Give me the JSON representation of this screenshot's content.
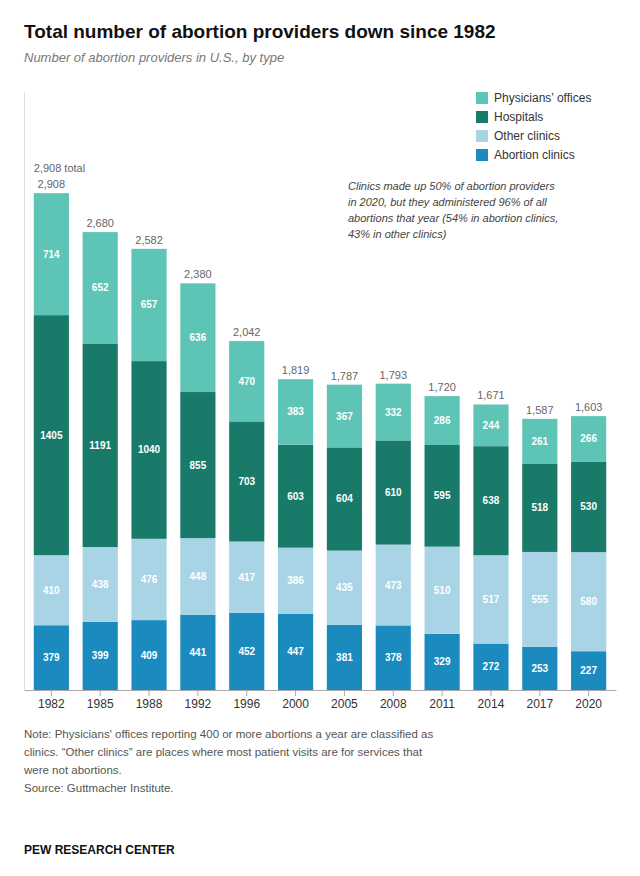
{
  "chart_data": {
    "type": "bar",
    "stacked": true,
    "title": "Total number of abortion providers down since 1982",
    "subtitle": "Number of abortion providers in U.S., by type",
    "categories": [
      "1982",
      "1985",
      "1988",
      "1992",
      "1996",
      "2000",
      "2005",
      "2008",
      "2011",
      "2014",
      "2017",
      "2020"
    ],
    "series": [
      {
        "name": "Physicians’ offices",
        "color": "#5ec4b5",
        "values": [
          714,
          652,
          657,
          636,
          470,
          383,
          367,
          332,
          286,
          244,
          261,
          266
        ]
      },
      {
        "name": "Hospitals",
        "color": "#1a7a6a",
        "values": [
          1405,
          1191,
          1040,
          855,
          703,
          603,
          604,
          610,
          595,
          638,
          518,
          530
        ]
      },
      {
        "name": "Other clinics",
        "color": "#a8d4e6",
        "values": [
          410,
          438,
          476,
          448,
          417,
          386,
          435,
          473,
          510,
          517,
          555,
          580
        ]
      },
      {
        "name": "Abortion clinics",
        "color": "#1b8abf",
        "values": [
          379,
          399,
          409,
          441,
          452,
          447,
          381,
          378,
          329,
          272,
          253,
          227
        ]
      }
    ],
    "totals": {
      "values": [
        2908,
        2680,
        2582,
        2380,
        2042,
        1819,
        1787,
        1793,
        1720,
        1671,
        1587,
        1603
      ],
      "value_labels": [
        "2,908",
        "2,680",
        "2,582",
        "2,380",
        "2,042",
        "1,819",
        "1,787",
        "1,793",
        "1,720",
        "1,671",
        "1,587",
        "1,603"
      ]
    },
    "annotations": [
      {
        "text": "2,908 total",
        "category": "1982"
      },
      {
        "lines": [
          "Clinics made up 50% of abortion providers",
          "in 2020, but they administered 96% of all",
          "abortions that year (54% in abortion clinics,",
          "43% in other clinics)"
        ]
      }
    ],
    "ylim": [
      0,
      3500
    ],
    "data_labels": true,
    "tick_labels": "x",
    "grid": false,
    "legend": "upper right",
    "notes": [
      "Note: Physicians' offices reporting 400 or more abortions a year are classified as",
      "clinics. “Other clinics” are places where most patient visits are for services that",
      "were not abortions.",
      "Source: Guttmacher Institute."
    ],
    "footer": "PEW RESEARCH CENTER"
  }
}
